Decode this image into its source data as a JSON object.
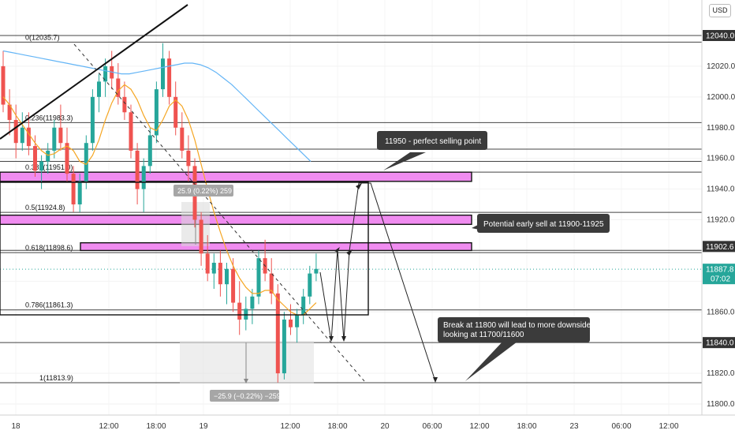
{
  "currency": "USD",
  "colors": {
    "bull": "#26a69a",
    "bear": "#ef5350",
    "zone_fill": "#f08cf0",
    "ma_fast": "#f5a623",
    "ma_slow": "#64b5f6",
    "callout_bg": "#3b3b3b",
    "last_price_bg": "#26a69a",
    "level_label_bg": "#333333"
  },
  "price_axis": {
    "ticks": [
      "12020.0",
      "12000.0",
      "11980.0",
      "11960.0",
      "11940.0",
      "11920.0",
      "11860.0",
      "11820.0",
      "11800.0"
    ],
    "highlighted_levels": [
      "12040.0",
      "11902.6",
      "11840.0"
    ],
    "last_price": "11887.8",
    "countdown": "07:02"
  },
  "time_axis": {
    "labels": [
      "18",
      "12:00",
      "18:00",
      "19",
      "12:00",
      "18:00",
      "20",
      "06:00",
      "12:00",
      "18:00",
      "23",
      "06:00",
      "12:00"
    ]
  },
  "fib_levels": [
    {
      "label": "0(12035.7)",
      "price": 12035.7
    },
    {
      "label": "0.236(11983.3)",
      "price": 11983.3
    },
    {
      "label": "0.382(11951.0)",
      "price": 11951.0
    },
    {
      "label": "0.5(11924.8)",
      "price": 11924.8
    },
    {
      "label": "0.618(11898.6)",
      "price": 11898.6
    },
    {
      "label": "0.786(11861.3)",
      "price": 11861.3
    },
    {
      "label": "1(11813.9)",
      "price": 11813.9
    }
  ],
  "zones": [
    {
      "price_top": 11951,
      "price_bottom": 11945
    },
    {
      "price_top": 11923,
      "price_bottom": 11917
    },
    {
      "price_top": 11905,
      "price_bottom": 11900
    }
  ],
  "measure": {
    "up_label": "25.9 (0.22%) 259",
    "down_label": "−25.9 (−0.22%) −259"
  },
  "callouts": [
    {
      "text": "11950 - perfect selling point"
    },
    {
      "text": "Potential early sell at 11900-11925"
    },
    {
      "line1": "Break at 11800 will lead to more downside",
      "line2": "looking at 11700/11600"
    }
  ],
  "chart_data": {
    "type": "candlestick",
    "y_range": [
      11790,
      12050
    ],
    "x_labels": [
      "18",
      "12:00",
      "18:00",
      "19",
      "12:00",
      "18:00",
      "20",
      "06:00",
      "12:00",
      "18:00",
      "23",
      "06:00",
      "12:00"
    ],
    "price_levels": [
      12040.0,
      11902.6,
      11840.0
    ],
    "last_price": 11887.8,
    "candles": [
      {
        "o": 12020,
        "h": 12030,
        "l": 11990,
        "c": 11995
      },
      {
        "o": 11995,
        "h": 12005,
        "l": 11975,
        "c": 11985
      },
      {
        "o": 11985,
        "h": 11995,
        "l": 11960,
        "c": 11970
      },
      {
        "o": 11970,
        "h": 11990,
        "l": 11965,
        "c": 11980
      },
      {
        "o": 11980,
        "h": 11990,
        "l": 11962,
        "c": 11968
      },
      {
        "o": 11968,
        "h": 11975,
        "l": 11948,
        "c": 11952
      },
      {
        "o": 11952,
        "h": 11962,
        "l": 11940,
        "c": 11958
      },
      {
        "o": 11958,
        "h": 11970,
        "l": 11950,
        "c": 11965
      },
      {
        "o": 11965,
        "h": 11985,
        "l": 11960,
        "c": 11980
      },
      {
        "o": 11980,
        "h": 11995,
        "l": 11965,
        "c": 11970
      },
      {
        "o": 11970,
        "h": 11980,
        "l": 11945,
        "c": 11950
      },
      {
        "o": 11950,
        "h": 11955,
        "l": 11925,
        "c": 11930
      },
      {
        "o": 11930,
        "h": 11950,
        "l": 11925,
        "c": 11945
      },
      {
        "o": 11945,
        "h": 11975,
        "l": 11940,
        "c": 11970
      },
      {
        "o": 11970,
        "h": 12005,
        "l": 11965,
        "c": 12000
      },
      {
        "o": 12000,
        "h": 12015,
        "l": 11990,
        "c": 12010
      },
      {
        "o": 12010,
        "h": 12025,
        "l": 12000,
        "c": 12020
      },
      {
        "o": 12020,
        "h": 12030,
        "l": 12005,
        "c": 12012
      },
      {
        "o": 12012,
        "h": 12022,
        "l": 11995,
        "c": 12000
      },
      {
        "o": 12000,
        "h": 12010,
        "l": 11985,
        "c": 11990
      },
      {
        "o": 11990,
        "h": 11995,
        "l": 11960,
        "c": 11965
      },
      {
        "o": 11965,
        "h": 11970,
        "l": 11930,
        "c": 11940
      },
      {
        "o": 11940,
        "h": 11960,
        "l": 11925,
        "c": 11955
      },
      {
        "o": 11955,
        "h": 11980,
        "l": 11950,
        "c": 11975
      },
      {
        "o": 11975,
        "h": 12010,
        "l": 11970,
        "c": 12005
      },
      {
        "o": 12005,
        "h": 12035,
        "l": 12000,
        "c": 12025
      },
      {
        "o": 12025,
        "h": 12030,
        "l": 11995,
        "c": 12000
      },
      {
        "o": 12000,
        "h": 12010,
        "l": 11975,
        "c": 11980
      },
      {
        "o": 11980,
        "h": 11990,
        "l": 11960,
        "c": 11965
      },
      {
        "o": 11965,
        "h": 11975,
        "l": 11945,
        "c": 11955
      },
      {
        "o": 11955,
        "h": 11960,
        "l": 11915,
        "c": 11920
      },
      {
        "o": 11920,
        "h": 11925,
        "l": 11890,
        "c": 11898
      },
      {
        "o": 11898,
        "h": 11910,
        "l": 11880,
        "c": 11885
      },
      {
        "o": 11885,
        "h": 11898,
        "l": 11875,
        "c": 11892
      },
      {
        "o": 11892,
        "h": 11900,
        "l": 11870,
        "c": 11878
      },
      {
        "o": 11878,
        "h": 11892,
        "l": 11865,
        "c": 11888
      },
      {
        "o": 11888,
        "h": 11895,
        "l": 11860,
        "c": 11866
      },
      {
        "o": 11866,
        "h": 11880,
        "l": 11845,
        "c": 11855
      },
      {
        "o": 11855,
        "h": 11870,
        "l": 11848,
        "c": 11862
      },
      {
        "o": 11862,
        "h": 11875,
        "l": 11852,
        "c": 11870
      },
      {
        "o": 11870,
        "h": 11900,
        "l": 11865,
        "c": 11895
      },
      {
        "o": 11895,
        "h": 11907,
        "l": 11880,
        "c": 11885
      },
      {
        "o": 11885,
        "h": 11895,
        "l": 11865,
        "c": 11872
      },
      {
        "o": 11872,
        "h": 11878,
        "l": 11814,
        "c": 11820
      },
      {
        "o": 11820,
        "h": 11860,
        "l": 11816,
        "c": 11855
      },
      {
        "o": 11855,
        "h": 11865,
        "l": 11845,
        "c": 11850
      },
      {
        "o": 11850,
        "h": 11862,
        "l": 11840,
        "c": 11858
      },
      {
        "o": 11858,
        "h": 11875,
        "l": 11852,
        "c": 11870
      },
      {
        "o": 11870,
        "h": 11890,
        "l": 11865,
        "c": 11885
      },
      {
        "o": 11885,
        "h": 11898,
        "l": 11880,
        "c": 11888
      }
    ],
    "ma_fast": [
      12000,
      11995,
      11988,
      11982,
      11976,
      11970,
      11965,
      11962,
      11963,
      11966,
      11968,
      11965,
      11958,
      11956,
      11962,
      11972,
      11985,
      11996,
      12004,
      12008,
      12005,
      11998,
      11988,
      11980,
      11978,
      11985,
      11994,
      11998,
      11994,
      11985,
      11972,
      11956,
      11940,
      11925,
      11912,
      11900,
      11890,
      11882,
      11876,
      11872,
      11872,
      11874,
      11874,
      11868,
      11864,
      11860,
      11858,
      11858,
      11862,
      11866
    ],
    "ma_slow": [
      12030,
      12029,
      12028,
      12027,
      12026,
      12025,
      12024,
      12023,
      12022,
      12021,
      12020,
      12019,
      12018,
      12017,
      12016,
      12015,
      12015,
      12016,
      12017,
      12018,
      12019,
      12020,
      12021,
      12022,
      12022,
      12021,
      12019,
      12016,
      12012,
      12008,
      12003,
      11998,
      11993,
      11988,
      11983,
      11978,
      11973,
      11968,
      11963,
      11958
    ]
  }
}
